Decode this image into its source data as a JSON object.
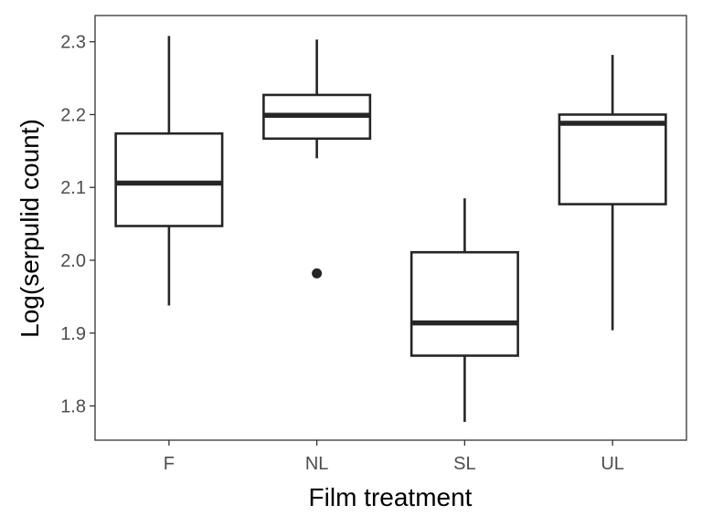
{
  "chart_data": {
    "type": "boxplot",
    "title": "",
    "xlabel": "Film treatment",
    "ylabel": "Log(serpulid count)",
    "categories": [
      "F",
      "NL",
      "SL",
      "UL"
    ],
    "boxes": [
      {
        "category": "F",
        "whisker_low": 1.938,
        "q1": 2.047,
        "median": 2.106,
        "q3": 2.174,
        "whisker_high": 2.308,
        "outliers": []
      },
      {
        "category": "NL",
        "whisker_low": 2.14,
        "q1": 2.167,
        "median": 2.199,
        "q3": 2.227,
        "whisker_high": 2.303,
        "outliers": [
          1.982
        ]
      },
      {
        "category": "SL",
        "whisker_low": 1.778,
        "q1": 1.869,
        "median": 1.914,
        "q3": 2.011,
        "whisker_high": 2.085,
        "outliers": []
      },
      {
        "category": "UL",
        "whisker_low": 1.904,
        "q1": 2.077,
        "median": 2.188,
        "q3": 2.2,
        "whisker_high": 2.282,
        "outliers": []
      }
    ],
    "y_ticks": [
      "1.8",
      "1.9",
      "2.0",
      "2.1",
      "2.2",
      "2.3"
    ],
    "ylim": [
      1.753,
      2.336
    ],
    "grid": false,
    "legend": "none",
    "colors": {
      "box_line": "#262626",
      "box_fill": "#ffffff",
      "outlier": "#262626",
      "panel_border": "#333333",
      "tick_text": "#4d4d4d"
    }
  }
}
